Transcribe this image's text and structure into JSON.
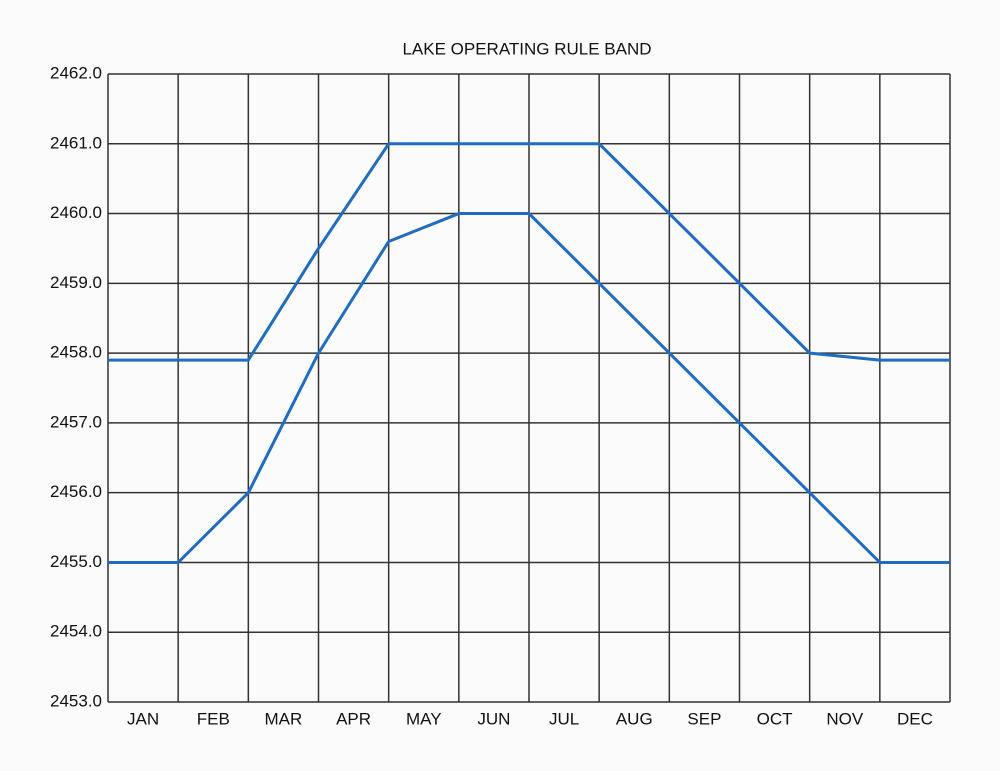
{
  "chart_data": {
    "type": "line",
    "title": "LAKE OPERATING RULE BAND",
    "categories": [
      "JAN",
      "FEB",
      "MAR",
      "APR",
      "MAY",
      "JUN",
      "JUL",
      "AUG",
      "SEP",
      "OCT",
      "NOV",
      "DEC"
    ],
    "x": [
      0,
      1,
      2,
      3,
      4,
      5,
      6,
      7,
      8,
      9,
      10,
      11,
      12
    ],
    "xlim": [
      0,
      12
    ],
    "series": [
      {
        "color": "#1f6cc0",
        "values": [
          2457.9,
          2457.9,
          2457.9,
          2459.5,
          2461,
          2461,
          2461,
          2461,
          2460,
          2459,
          2458,
          2457.9,
          2457.9
        ]
      },
      {
        "color": "#1f6cc0",
        "values": [
          2455,
          2455,
          2456,
          2458,
          2459.6,
          2460,
          2460,
          2459,
          2458,
          2457,
          2456,
          2455,
          2455
        ]
      }
    ],
    "ylim": [
      2453,
      2462
    ],
    "yticks": [
      {
        "value": 2453,
        "label": "2453.0"
      },
      {
        "value": 2454,
        "label": "2454.0"
      },
      {
        "value": 2455,
        "label": "2455.0"
      },
      {
        "value": 2456,
        "label": "2456.0"
      },
      {
        "value": 2457,
        "label": "2457.0"
      },
      {
        "value": 2458,
        "label": "2458.0"
      },
      {
        "value": 2459,
        "label": "2459.0"
      },
      {
        "value": 2460,
        "label": "2460.0"
      },
      {
        "value": 2461,
        "label": "2461.0"
      },
      {
        "value": 2462,
        "label": "2462.0"
      }
    ],
    "grid": true
  }
}
